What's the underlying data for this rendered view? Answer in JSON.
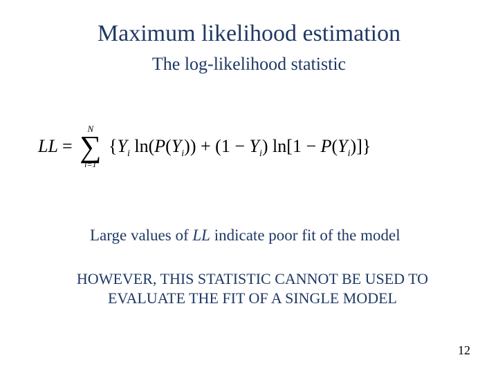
{
  "title": {
    "text": "Maximum likelihood estimation",
    "color": "#1f3864",
    "fontsize": 34
  },
  "subtitle": {
    "text": "The log-likelihood statistic",
    "color": "#1f3864",
    "fontsize": 26
  },
  "formula": {
    "lhs": "LL",
    "eq": "=",
    "sum_upper": "N",
    "sum_lower": "i=1",
    "open": "{",
    "y": "Y",
    "sub_i": "i",
    "ln": "ln",
    "P": "P",
    "plus": "+",
    "one_minus": "(1 − ",
    "close_paren": ")",
    "open_sq": "[",
    "one_minus_p": "1 − ",
    "close_sq": "]",
    "close_brace": "}",
    "color": "#000000",
    "fontsize": 26
  },
  "note": {
    "pre": "Large values of ",
    "ll": "LL",
    "post": " indicate poor fit of the model",
    "color": "#1f3864",
    "fontsize": 23
  },
  "warning": {
    "line1": "HOWEVER, THIS STATISTIC CANNOT BE USED TO",
    "line2": "EVALUATE THE FIT OF A SINGLE MODEL",
    "color": "#1f3864",
    "fontsize": 22
  },
  "pagenum": {
    "text": "12",
    "color": "#000000",
    "fontsize": 18
  },
  "background_color": "#ffffff"
}
